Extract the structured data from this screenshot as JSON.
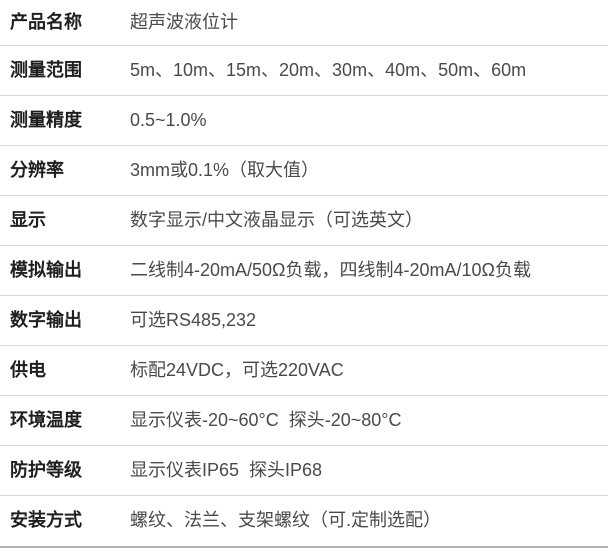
{
  "table": {
    "rows": [
      {
        "label": "产品名称",
        "value": "超声波液位计"
      },
      {
        "label": "测量范围",
        "value": "5m、10m、15m、20m、30m、40m、50m、60m"
      },
      {
        "label": "测量精度",
        "value": "0.5~1.0%"
      },
      {
        "label": "分辨率",
        "value": "3mm或0.1%（取大值）"
      },
      {
        "label": "显示",
        "value": "数字显示/中文液晶显示（可选英文）"
      },
      {
        "label": "模拟输出",
        "value": "二线制4-20mA/50Ω负载，四线制4-20mA/10Ω负载"
      },
      {
        "label": "数字输出",
        "value": "可选RS485,232"
      },
      {
        "label": "供电",
        "value": "标配24VDC，可选220VAC"
      },
      {
        "label": "环境温度",
        "value": "显示仪表-20~60°C  探头-20~80°C"
      },
      {
        "label": "防护等级",
        "value": "显示仪表IP65  探头IP68"
      },
      {
        "label": "安装方式",
        "value": "螺纹、法兰、支架螺纹（可.定制选配）"
      }
    ],
    "colors": {
      "label_text": "#1f1f1f",
      "value_text": "#4a4a4a",
      "divider": "#d6d6d6",
      "bottom_border": "#b0b0b0",
      "background": "#ffffff"
    }
  }
}
